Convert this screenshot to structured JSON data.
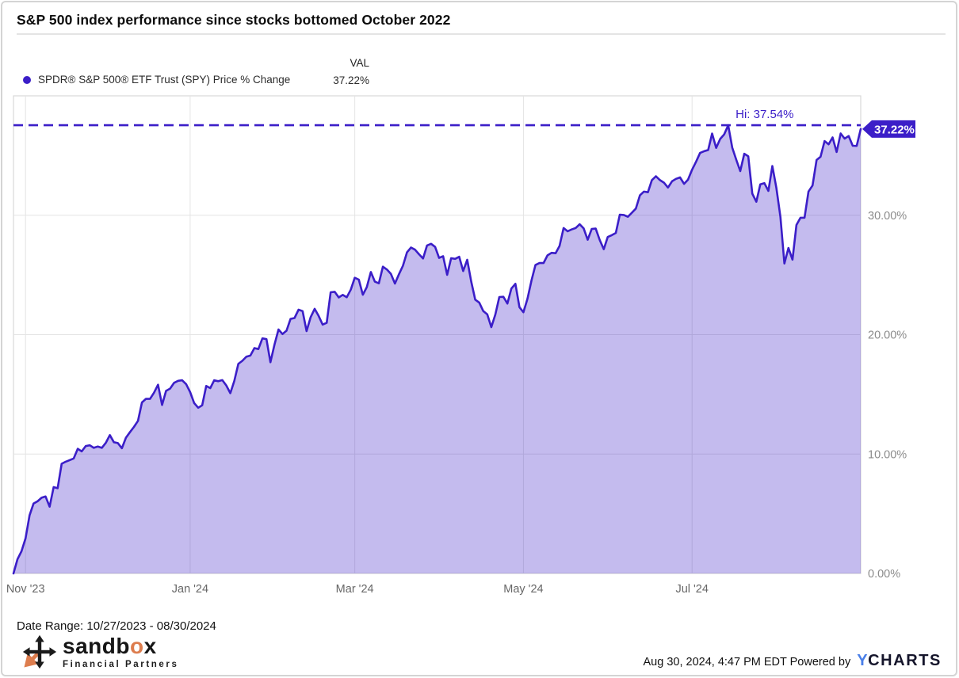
{
  "header": {
    "title": "S&P 500 index performance since stocks bottomed October 2022"
  },
  "legend": {
    "series_label": "SPDR® S&P 500® ETF Trust (SPY) Price % Change",
    "val_header": "VAL",
    "val": "37.22%",
    "dot_icon": "series-dot-icon"
  },
  "colors": {
    "accent": "#3B1EC8",
    "fill": "rgba(59,30,200,0.30)",
    "grid": "#e4e4e4",
    "plot_border": "#d8d8d8",
    "y_label": "#8b8b8b",
    "x_label": "#676767",
    "orange": "#DD7D4E",
    "ycharts_blue": "#4A7FE8"
  },
  "chart_data": {
    "type": "area",
    "title": "S&P 500 index performance since stocks bottomed October 2022",
    "series_name": "SPDR® S&P 500® ETF Trust (SPY) Price % Change",
    "start_date": "10/27/2023",
    "end_date": "08/30/2024",
    "frequency": "daily trading days",
    "unit": "percent change",
    "ylim": [
      0,
      40
    ],
    "grid": true,
    "legend_position": "top-left",
    "yticks": [
      {
        "value": 0,
        "label": "0.00%"
      },
      {
        "value": 10,
        "label": "10.00%"
      },
      {
        "value": 20,
        "label": "20.00%"
      },
      {
        "value": 30,
        "label": "30.00%"
      }
    ],
    "xticks": [
      {
        "index": 3,
        "label": "Nov '23"
      },
      {
        "index": 44,
        "label": "Jan '24"
      },
      {
        "index": 85,
        "label": "Mar '24"
      },
      {
        "index": 127,
        "label": "May '24"
      },
      {
        "index": 169,
        "label": "Jul '24"
      }
    ],
    "high": {
      "value": 37.54,
      "label": "Hi: 37.54%",
      "index": 178
    },
    "last": {
      "value": 37.22,
      "label": "37.22%"
    },
    "line_color": "#3B1EC8",
    "fill_color": "rgba(59,30,200,0.30)",
    "values": [
      0.0,
      1.2,
      1.86,
      2.93,
      4.87,
      5.85,
      6.04,
      6.34,
      6.45,
      5.59,
      7.23,
      7.14,
      9.19,
      9.36,
      9.49,
      9.63,
      10.44,
      10.22,
      10.67,
      10.73,
      10.52,
      10.63,
      10.52,
      10.94,
      11.59,
      10.99,
      10.92,
      10.49,
      11.37,
      11.83,
      12.27,
      12.78,
      14.32,
      14.63,
      14.62,
      15.14,
      15.81,
      14.11,
      15.29,
      15.48,
      15.97,
      16.13,
      16.18,
      15.85,
      15.19,
      14.27,
      13.88,
      14.08,
      15.7,
      15.52,
      16.18,
      16.1,
      16.19,
      15.75,
      15.1,
      16.12,
      17.55,
      17.81,
      18.15,
      18.25,
      18.87,
      18.79,
      19.69,
      19.62,
      17.69,
      19.16,
      20.43,
      20.05,
      20.33,
      21.32,
      21.39,
      22.09,
      21.97,
      20.3,
      21.45,
      22.16,
      21.57,
      20.84,
      20.99,
      23.55,
      23.59,
      23.12,
      23.33,
      23.13,
      23.77,
      24.76,
      24.61,
      23.34,
      23.98,
      25.25,
      24.44,
      24.3,
      25.69,
      25.45,
      25.09,
      24.28,
      25.06,
      25.77,
      26.89,
      27.3,
      27.12,
      26.73,
      26.38,
      27.47,
      27.61,
      27.35,
      26.43,
      26.57,
      25.01,
      26.4,
      26.35,
      26.53,
      25.33,
      26.27,
      24.43,
      22.93,
      22.68,
      21.97,
      21.7,
      20.63,
      21.69,
      23.15,
      23.17,
      22.61,
      23.86,
      24.26,
      22.3,
      21.88,
      23.0,
      24.54,
      25.83,
      26.0,
      26.0,
      26.64,
      26.85,
      26.82,
      27.43,
      28.93,
      28.66,
      28.81,
      28.93,
      29.25,
      28.9,
      27.95,
      28.85,
      28.88,
      27.93,
      27.16,
      28.18,
      28.33,
      28.52,
      30.04,
      30.02,
      29.87,
      30.21,
      30.56,
      31.67,
      31.98,
      31.93,
      32.94,
      33.27,
      32.94,
      32.73,
      32.32,
      32.84,
      33.05,
      33.17,
      32.63,
      32.98,
      33.81,
      34.49,
      35.22,
      35.36,
      35.46,
      36.84,
      35.64,
      36.39,
      36.77,
      37.54,
      35.66,
      34.66,
      33.7,
      35.15,
      34.94,
      31.81,
      31.13,
      32.59,
      32.69,
      32.04,
      34.12,
      32.28,
      29.85,
      25.96,
      27.26,
      26.28,
      29.19,
      29.79,
      29.8,
      31.99,
      32.49,
      34.63,
      34.9,
      36.21,
      35.94,
      36.52,
      35.3,
      36.85,
      36.42,
      36.64,
      35.82,
      35.81,
      37.22
    ]
  },
  "footer": {
    "date_range": "Date Range: 10/27/2023 - 08/30/2024",
    "logo": {
      "icon": "four-way-arrows-icon",
      "word_pre": "sandb",
      "word_o": "o",
      "word_post": "x",
      "subtitle": "Financial Partners"
    },
    "timestamp_powered": "Aug 30, 2024, 4:47 PM EDT Powered by",
    "ycharts_y": "Y",
    "ycharts_rest": "CHARTS"
  }
}
